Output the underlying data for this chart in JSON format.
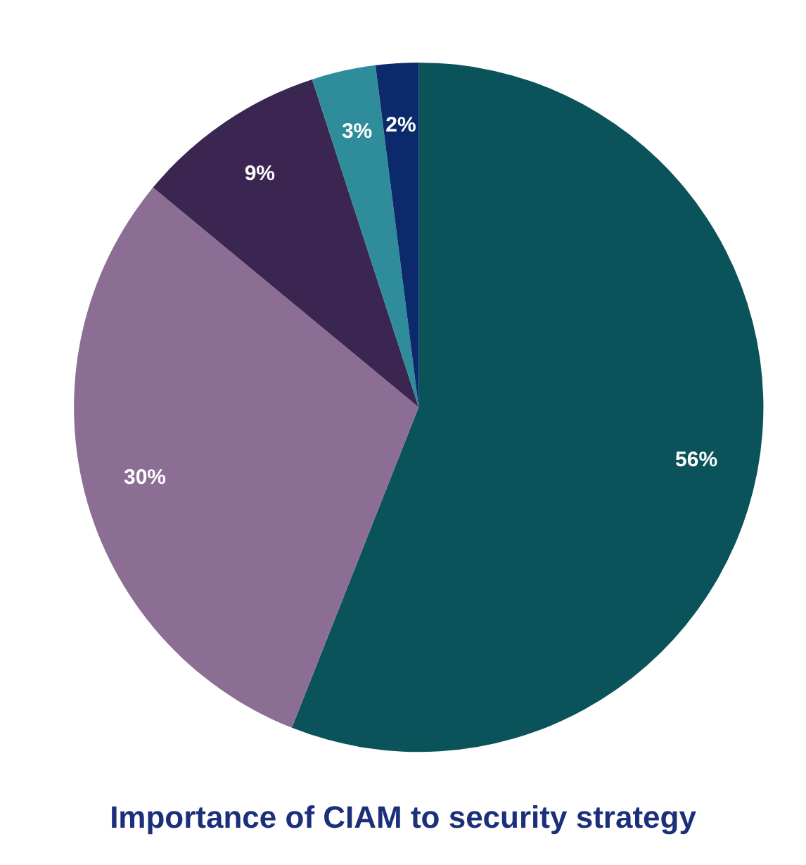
{
  "chart_data": {
    "type": "pie",
    "title": "Importance of CIAM to security strategy",
    "categories": [
      null,
      null,
      null,
      null,
      null
    ],
    "values": [
      56,
      30,
      9,
      3,
      2
    ],
    "colors": [
      "#0b535a",
      "#8c6e94",
      "#3a2650",
      "#2f8c9a",
      "#0c2a6b"
    ],
    "value_labels": [
      "56%",
      "30%",
      "9%",
      "3%",
      "2%"
    ]
  }
}
